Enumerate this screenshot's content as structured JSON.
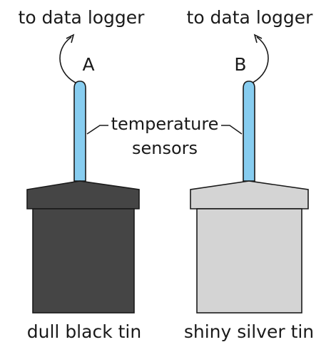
{
  "diagram": {
    "left_destination": "to data logger",
    "right_destination": "to data logger",
    "label_a": "A",
    "label_b": "B",
    "sensor_label_line1": "temperature",
    "sensor_label_line2": "sensors",
    "left_tin_label": "dull black tin",
    "right_tin_label": "shiny silver tin"
  },
  "colors": {
    "sensor": "#87cdf0",
    "black_tin": "#454545",
    "silver_tin": "#d4d4d4",
    "outline": "#1a1a1a"
  }
}
